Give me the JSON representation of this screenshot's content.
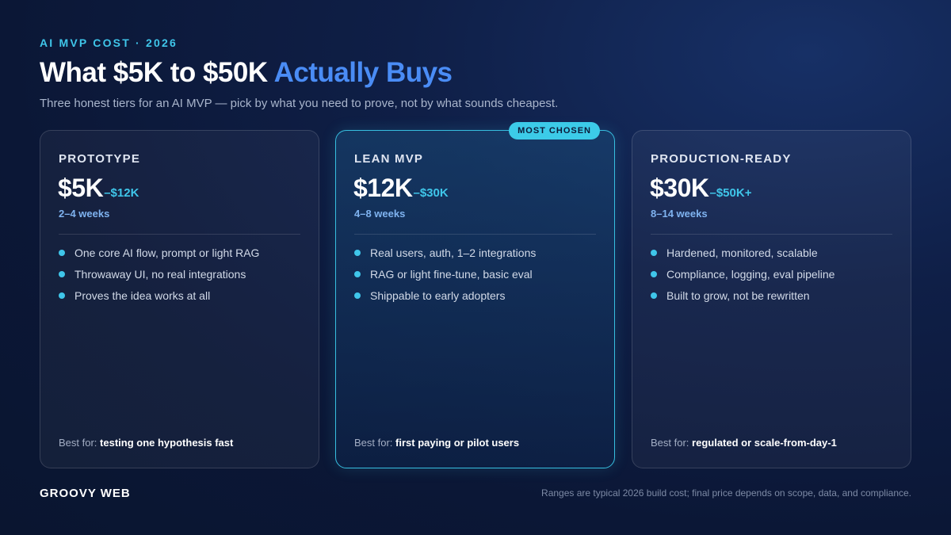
{
  "header": {
    "eyebrow": "AI MVP COST · 2026",
    "title_main": "What $5K to $50K",
    "title_accent": "Actually Buys",
    "subtitle": "Three honest tiers for an AI MVP — pick by what you need to prove, not by what sounds cheapest."
  },
  "cards": [
    {
      "tier": "PROTOTYPE",
      "price_main": "$5K",
      "price_range": "–$12K",
      "duration": "2–4 weeks",
      "features": [
        "One core AI flow, prompt or light RAG",
        "Throwaway UI, no real integrations",
        "Proves the idea works at all"
      ],
      "best_for_label": "Best for:",
      "best_for_value": "testing one hypothesis fast"
    },
    {
      "tier": "LEAN MVP",
      "badge": "MOST CHOSEN",
      "price_main": "$12K",
      "price_range": "–$30K",
      "duration": "4–8 weeks",
      "features": [
        "Real users, auth, 1–2 integrations",
        "RAG or light fine-tune, basic eval",
        "Shippable to early adopters"
      ],
      "best_for_label": "Best for:",
      "best_for_value": "first paying or pilot users"
    },
    {
      "tier": "PRODUCTION-READY",
      "price_main": "$30K",
      "price_range": "–$50K+",
      "duration": "8–14 weeks",
      "features": [
        "Hardened, monitored, scalable",
        "Compliance, logging, eval pipeline",
        "Built to grow, not be rewritten"
      ],
      "best_for_label": "Best for:",
      "best_for_value": "regulated or scale-from-day-1"
    }
  ],
  "footer": {
    "brand": "GROOVY WEB",
    "note": "Ranges are typical 2026 build cost; final price depends on scope, data, and compliance."
  },
  "colors": {
    "accent_cyan": "#3fc6ea",
    "accent_blue": "#4a8cf5",
    "background": "#0b1736"
  }
}
